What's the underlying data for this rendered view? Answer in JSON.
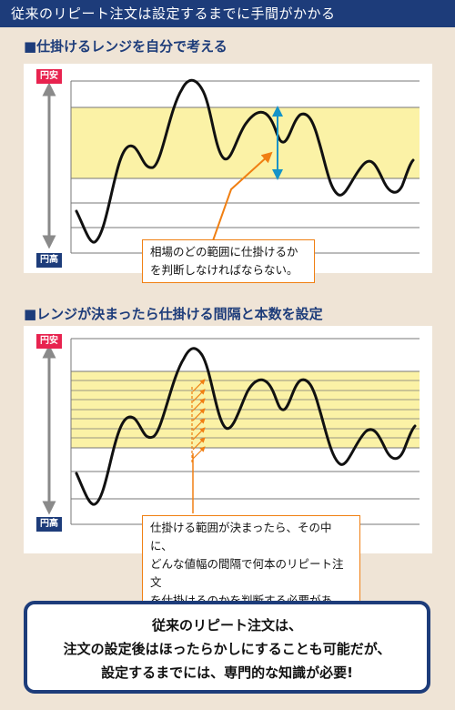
{
  "header": {
    "title": "従来のリピート注文は設定するまでに手間がかかる"
  },
  "section1": {
    "title": "■仕掛けるレンジを自分で考える",
    "tag_top": "円安",
    "tag_bottom": "円高",
    "callout": [
      "相場のどの範囲に仕掛けるか",
      "を判断しなければならない。"
    ]
  },
  "section2": {
    "title": "■レンジが決まったら仕掛ける間隔と本数を設定",
    "tag_top": "円安",
    "tag_bottom": "円高",
    "callout": [
      "仕掛ける範囲が決まったら、その中に、",
      "どんな値幅の間隔で何本のリピート注文",
      "を仕掛けるのかを判断する必要がある。"
    ]
  },
  "summary": {
    "lines": [
      "従来のリピート注文は、",
      "注文の設定後はほったらかしにすることも可能だが、",
      "設定するまでには、専門的な知識が必要!"
    ]
  },
  "colors": {
    "navy": "#1d3c7a",
    "orange": "#f07f12",
    "range_yellow": "#fbf2a6",
    "tag_red": "#e8234f",
    "background": "#efe4d6"
  }
}
